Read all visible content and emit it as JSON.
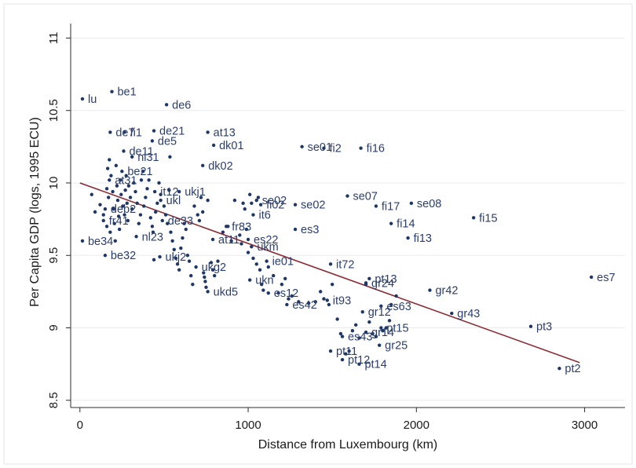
{
  "chart_data": {
    "type": "scatter",
    "xlabel": "Distance from Luxembourg (km)",
    "ylabel": "Per Capita GDP (logs, 1995 ECU)",
    "xlim": [
      -55,
      3240
    ],
    "ylim": [
      8.45,
      11.1
    ],
    "xticks": [
      0,
      1000,
      2000,
      3000
    ],
    "yticks": [
      8.5,
      9,
      9.5,
      10,
      10.5,
      11
    ],
    "grid": true,
    "legend": "none",
    "colors": {
      "point": "#1f3767",
      "label": "#2b3e6b",
      "fit_line": "#8b2c35",
      "grid": "#e8ebee",
      "axis": "#2c2c2c"
    },
    "fit_line": {
      "x": [
        0,
        2970
      ],
      "y": [
        10.0,
        8.76
      ]
    },
    "points": [
      {
        "x": 15,
        "y": 10.58,
        "label": "lu"
      },
      {
        "x": 190,
        "y": 10.63,
        "label": "be1"
      },
      {
        "x": 515,
        "y": 10.54,
        "label": "de6"
      },
      {
        "x": 180,
        "y": 10.35,
        "label": "de7"
      },
      {
        "x": 265,
        "y": 10.35,
        "label": "fi1"
      },
      {
        "x": 440,
        "y": 10.36,
        "label": "de21"
      },
      {
        "x": 760,
        "y": 10.35,
        "label": "at13"
      },
      {
        "x": 430,
        "y": 10.29,
        "label": "de5"
      },
      {
        "x": 795,
        "y": 10.26,
        "label": "dk01"
      },
      {
        "x": 1320,
        "y": 10.25,
        "label": "se01"
      },
      {
        "x": 1450,
        "y": 10.24,
        "label": "fi2"
      },
      {
        "x": 1670,
        "y": 10.24,
        "label": "fi16"
      },
      {
        "x": 260,
        "y": 10.22,
        "label": "de11"
      },
      {
        "x": 310,
        "y": 10.18,
        "label": "nl31"
      },
      {
        "x": 730,
        "y": 10.12,
        "label": "dk02"
      },
      {
        "x": 250,
        "y": 10.08,
        "label": "be21"
      },
      {
        "x": 175,
        "y": 10.02,
        "label": "at31"
      },
      {
        "x": 445,
        "y": 9.94,
        "label": "it12"
      },
      {
        "x": 590,
        "y": 9.94,
        "label": "ukj1"
      },
      {
        "x": 1050,
        "y": 9.88,
        "label": "se02"
      },
      {
        "x": 1075,
        "y": 9.85,
        "label": "fi02"
      },
      {
        "x": 1280,
        "y": 9.85,
        "label": "se02"
      },
      {
        "x": 1590,
        "y": 9.91,
        "label": "se07"
      },
      {
        "x": 1970,
        "y": 9.86,
        "label": "se08"
      },
      {
        "x": 480,
        "y": 9.88,
        "label": "ukl"
      },
      {
        "x": 1760,
        "y": 9.84,
        "label": "fi17"
      },
      {
        "x": 150,
        "y": 9.82,
        "label": "deb2"
      },
      {
        "x": 1030,
        "y": 9.78,
        "label": "it6"
      },
      {
        "x": 2340,
        "y": 9.76,
        "label": "fi15"
      },
      {
        "x": 140,
        "y": 9.74,
        "label": "fr41"
      },
      {
        "x": 490,
        "y": 9.74,
        "label": "de33"
      },
      {
        "x": 1850,
        "y": 9.72,
        "label": "fi14"
      },
      {
        "x": 870,
        "y": 9.7,
        "label": "fr83"
      },
      {
        "x": 1280,
        "y": 9.68,
        "label": "es3"
      },
      {
        "x": 335,
        "y": 9.63,
        "label": "nl23"
      },
      {
        "x": 790,
        "y": 9.61,
        "label": "at11"
      },
      {
        "x": 1000,
        "y": 9.61,
        "label": "es22"
      },
      {
        "x": 1950,
        "y": 9.62,
        "label": "fi13"
      },
      {
        "x": 15,
        "y": 9.6,
        "label": "be34"
      },
      {
        "x": 1020,
        "y": 9.56,
        "label": "ukm"
      },
      {
        "x": 150,
        "y": 9.5,
        "label": "be32"
      },
      {
        "x": 475,
        "y": 9.49,
        "label": "ukj2"
      },
      {
        "x": 1110,
        "y": 9.46,
        "label": "ie01"
      },
      {
        "x": 1490,
        "y": 9.44,
        "label": "it72"
      },
      {
        "x": 690,
        "y": 9.42,
        "label": "ukg2"
      },
      {
        "x": 1720,
        "y": 9.34,
        "label": "pt13"
      },
      {
        "x": 1010,
        "y": 9.33,
        "label": "ukn"
      },
      {
        "x": 1700,
        "y": 9.31,
        "label": "gr24"
      },
      {
        "x": 3040,
        "y": 9.35,
        "label": "es7"
      },
      {
        "x": 760,
        "y": 9.25,
        "label": "ukd5"
      },
      {
        "x": 1120,
        "y": 9.24,
        "label": "es12"
      },
      {
        "x": 2080,
        "y": 9.26,
        "label": "gr42"
      },
      {
        "x": 1470,
        "y": 9.19,
        "label": "it93"
      },
      {
        "x": 1230,
        "y": 9.16,
        "label": "es42"
      },
      {
        "x": 1790,
        "y": 9.15,
        "label": "es63"
      },
      {
        "x": 1680,
        "y": 9.11,
        "label": "gr12"
      },
      {
        "x": 2210,
        "y": 9.1,
        "label": "gr43"
      },
      {
        "x": 2680,
        "y": 9.01,
        "label": "pt3"
      },
      {
        "x": 1790,
        "y": 9.0,
        "label": "pt15"
      },
      {
        "x": 1700,
        "y": 8.97,
        "label": "gr14"
      },
      {
        "x": 1560,
        "y": 8.94,
        "label": "es43"
      },
      {
        "x": 1780,
        "y": 8.88,
        "label": "gr25"
      },
      {
        "x": 1490,
        "y": 8.84,
        "label": "pt11"
      },
      {
        "x": 1560,
        "y": 8.78,
        "label": "pt12"
      },
      {
        "x": 1660,
        "y": 8.75,
        "label": "pt14"
      },
      {
        "x": 2850,
        "y": 8.72,
        "label": "pt2"
      }
    ],
    "unlabeled_points": [
      [
        70,
        9.92
      ],
      [
        90,
        9.8
      ],
      [
        120,
        9.85
      ],
      [
        140,
        9.78
      ],
      [
        160,
        9.7
      ],
      [
        160,
        9.96
      ],
      [
        165,
        10.1
      ],
      [
        170,
        9.9
      ],
      [
        175,
        10.16
      ],
      [
        180,
        9.66
      ],
      [
        185,
        10.05
      ],
      [
        195,
        9.94
      ],
      [
        200,
        9.82
      ],
      [
        205,
        9.72
      ],
      [
        210,
        9.6
      ],
      [
        215,
        10.12
      ],
      [
        220,
        9.98
      ],
      [
        225,
        9.88
      ],
      [
        230,
        9.77
      ],
      [
        235,
        9.68
      ],
      [
        240,
        10.02
      ],
      [
        245,
        9.92
      ],
      [
        255,
        9.84
      ],
      [
        265,
        9.78
      ],
      [
        270,
        9.95
      ],
      [
        275,
        10.05
      ],
      [
        280,
        9.86
      ],
      [
        285,
        9.74
      ],
      [
        290,
        9.98
      ],
      [
        300,
        9.9
      ],
      [
        310,
        9.82
      ],
      [
        320,
        10.0
      ],
      [
        330,
        9.94
      ],
      [
        340,
        9.86
      ],
      [
        350,
        9.72
      ],
      [
        360,
        9.78
      ],
      [
        365,
        10.02
      ],
      [
        375,
        10.08
      ],
      [
        380,
        9.84
      ],
      [
        390,
        9.9
      ],
      [
        400,
        9.96
      ],
      [
        410,
        10.02
      ],
      [
        420,
        9.76
      ],
      [
        430,
        9.7
      ],
      [
        435,
        9.66
      ],
      [
        440,
        9.47
      ],
      [
        450,
        9.8
      ],
      [
        460,
        9.86
      ],
      [
        470,
        10.0
      ],
      [
        480,
        9.92
      ],
      [
        500,
        9.84
      ],
      [
        510,
        9.78
      ],
      [
        520,
        9.72
      ],
      [
        530,
        9.95
      ],
      [
        535,
        10.18
      ],
      [
        540,
        9.66
      ],
      [
        550,
        9.6
      ],
      [
        560,
        9.54
      ],
      [
        570,
        9.48
      ],
      [
        580,
        9.44
      ],
      [
        590,
        9.4
      ],
      [
        600,
        9.55
      ],
      [
        610,
        9.62
      ],
      [
        620,
        9.72
      ],
      [
        630,
        9.68
      ],
      [
        640,
        9.5
      ],
      [
        650,
        9.46
      ],
      [
        660,
        9.36
      ],
      [
        670,
        9.3
      ],
      [
        680,
        9.84
      ],
      [
        700,
        9.78
      ],
      [
        710,
        9.74
      ],
      [
        720,
        9.9
      ],
      [
        730,
        9.8
      ],
      [
        735,
        9.38
      ],
      [
        740,
        9.35
      ],
      [
        745,
        9.32
      ],
      [
        750,
        9.28
      ],
      [
        760,
        9.88
      ],
      [
        780,
        9.45
      ],
      [
        790,
        9.4
      ],
      [
        800,
        9.36
      ],
      [
        820,
        9.46
      ],
      [
        850,
        9.66
      ],
      [
        880,
        9.7
      ],
      [
        900,
        9.6
      ],
      [
        920,
        9.88
      ],
      [
        950,
        9.64
      ],
      [
        960,
        9.58
      ],
      [
        970,
        9.86
      ],
      [
        980,
        9.82
      ],
      [
        990,
        9.68
      ],
      [
        1000,
        9.52
      ],
      [
        1010,
        9.92
      ],
      [
        1020,
        9.86
      ],
      [
        1030,
        9.48
      ],
      [
        1050,
        9.44
      ],
      [
        1060,
        9.9
      ],
      [
        1070,
        9.4
      ],
      [
        1080,
        9.3
      ],
      [
        1090,
        9.26
      ],
      [
        1120,
        9.42
      ],
      [
        1150,
        9.36
      ],
      [
        1180,
        9.24
      ],
      [
        1200,
        9.3
      ],
      [
        1220,
        9.34
      ],
      [
        1240,
        9.2
      ],
      [
        1260,
        9.22
      ],
      [
        1300,
        9.18
      ],
      [
        1360,
        9.17
      ],
      [
        1400,
        9.18
      ],
      [
        1430,
        9.25
      ],
      [
        1450,
        9.2
      ],
      [
        1480,
        9.16
      ],
      [
        1500,
        9.3
      ],
      [
        1530,
        9.06
      ],
      [
        1550,
        8.96
      ],
      [
        1580,
        8.82
      ],
      [
        1600,
        8.84
      ],
      [
        1620,
        8.98
      ],
      [
        1640,
        9.02
      ],
      [
        1660,
        8.93
      ],
      [
        1700,
        9.3
      ],
      [
        1720,
        9.04
      ],
      [
        1740,
        8.96
      ],
      [
        1760,
        8.94
      ],
      [
        1800,
        8.98
      ],
      [
        1820,
        9.0
      ],
      [
        1840,
        9.05
      ],
      [
        1850,
        9.16
      ],
      [
        1880,
        9.22
      ]
    ]
  }
}
